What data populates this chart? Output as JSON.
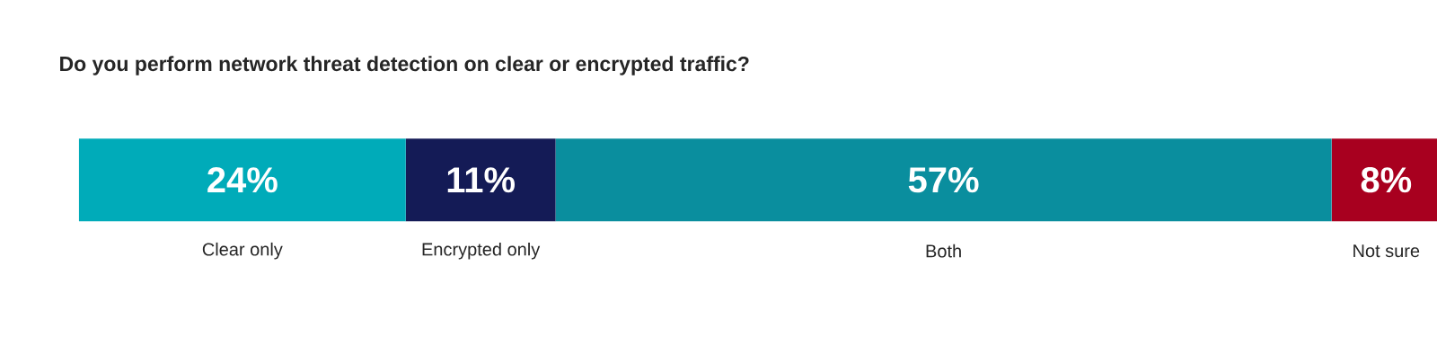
{
  "chart_data": {
    "type": "bar",
    "title": "Do you perform network threat detection on clear or encrypted traffic?",
    "orientation": "horizontal",
    "stacked": true,
    "categories": [
      null
    ],
    "xlim": [
      0,
      100
    ],
    "series": [
      {
        "name": "Clear only",
        "color": "#00abb9",
        "values": [
          24
        ],
        "value_labels": [
          "24%"
        ]
      },
      {
        "name": "Encrypted only",
        "color": "#141b56",
        "values": [
          11
        ],
        "value_labels": [
          "11%"
        ]
      },
      {
        "name": "Both",
        "color": "#0a8e9e",
        "values": [
          57
        ],
        "value_labels": [
          "57%"
        ]
      },
      {
        "name": "Not sure",
        "color": "#a8001f",
        "values": [
          8
        ],
        "value_labels": [
          "8%"
        ]
      }
    ],
    "legend": false
  }
}
